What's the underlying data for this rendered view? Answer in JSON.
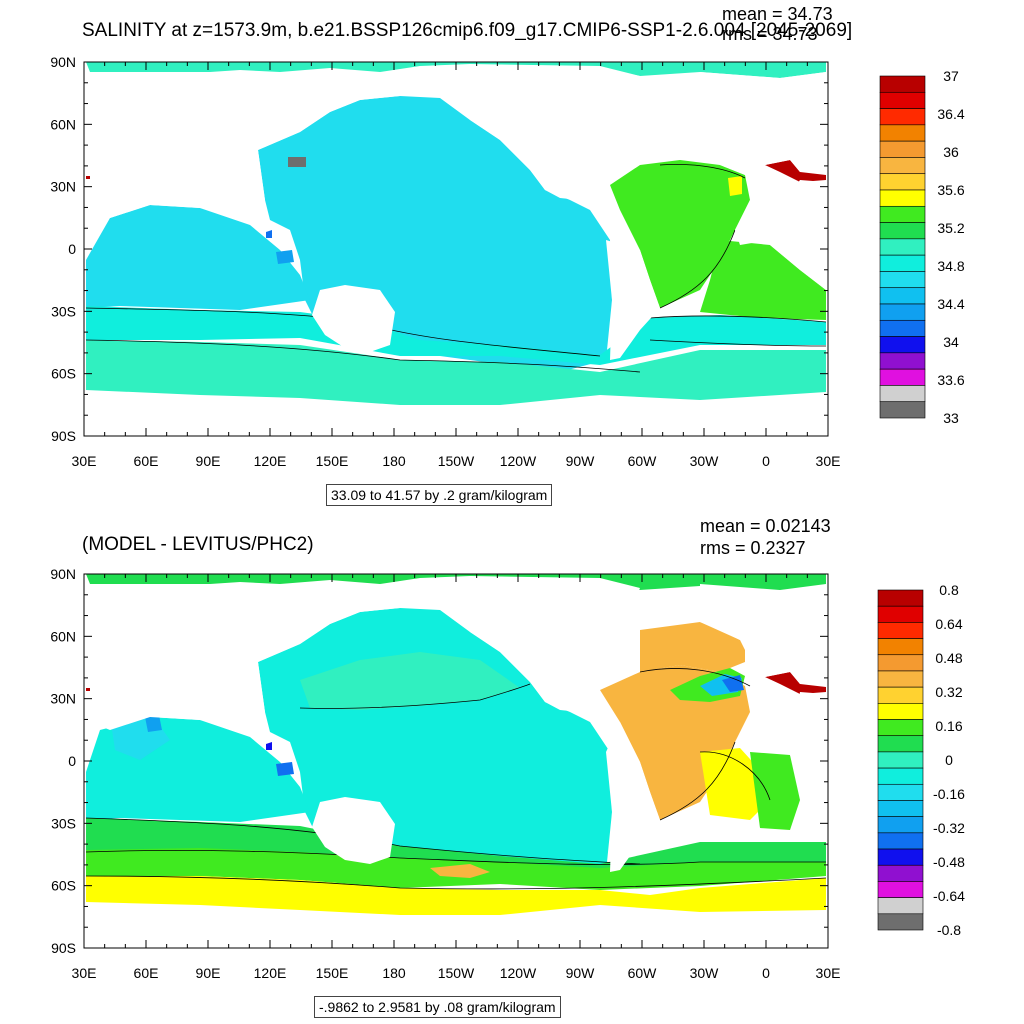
{
  "panel1": {
    "title": "SALINITY at z=1573.9m, b.e21.BSSP126cmip6.f09_g17.CMIP6-SSP1-2.6.004 [2045-2069]",
    "mean_text": "mean = 34.73",
    "rms_text": "rms = 34.73",
    "range_text": "33.09 to 41.57 by .2 gram/kilogram",
    "colorbar_labels": [
      "37",
      "36.4",
      "36",
      "35.6",
      "35.2",
      "34.8",
      "34.4",
      "34",
      "33.6",
      "33"
    ],
    "colorbar_colors": [
      "#b80000",
      "#e00000",
      "#ff2a00",
      "#f28200",
      "#f49a30",
      "#f8b540",
      "#ffd230",
      "#ffff00",
      "#40ea20",
      "#20dd50",
      "#30f0c0",
      "#10eedd",
      "#20ddee",
      "#10c0f0",
      "#10a0f0",
      "#1070f0",
      "#1010ee",
      "#9010d0",
      "#e010e0",
      "#d0d0d0",
      "#6e6e6e"
    ]
  },
  "panel2": {
    "title": "(MODEL - LEVITUS/PHC2)",
    "mean_text": "mean = 0.02143",
    "rms_text": "rms = 0.2327",
    "range_text": "-.9862 to 2.9581 by .08 gram/kilogram",
    "colorbar_labels": [
      "0.8",
      "0.64",
      "0.48",
      "0.32",
      "0.16",
      "0",
      "-0.16",
      "-0.32",
      "-0.48",
      "-0.64",
      "-0.8"
    ],
    "colorbar_colors": [
      "#b80000",
      "#e00000",
      "#ff2a00",
      "#f28200",
      "#f49a30",
      "#f8b540",
      "#ffd230",
      "#ffff00",
      "#40ea20",
      "#20dd50",
      "#30f0c0",
      "#10eedd",
      "#20ddee",
      "#10c0f0",
      "#10a0f0",
      "#1070f0",
      "#1010ee",
      "#9010d0",
      "#e010e0",
      "#d0d0d0",
      "#6e6e6e"
    ]
  },
  "axes": {
    "lat_labels": [
      "90N",
      "60N",
      "30N",
      "0",
      "30S",
      "60S",
      "90S"
    ],
    "lon_labels": [
      "30E",
      "60E",
      "90E",
      "120E",
      "150E",
      "180",
      "150W",
      "120W",
      "90W",
      "60W",
      "30W",
      "0",
      "30E"
    ]
  },
  "chart_data": [
    {
      "type": "heatmap",
      "title": "SALINITY at z=1573.9m, b.e21.BSSP126cmip6.f09_g17.CMIP6-SSP1-2.6.004 [2045-2069]",
      "x_ticks": [
        "30E",
        "60E",
        "90E",
        "120E",
        "150E",
        "180",
        "150W",
        "120W",
        "90W",
        "60W",
        "30W",
        "0",
        "30E"
      ],
      "y_ticks": [
        "90N",
        "60N",
        "30N",
        "0",
        "30S",
        "60S",
        "90S"
      ],
      "mean": 34.73,
      "rms": 34.73,
      "contour_range": [
        33.09,
        41.57
      ],
      "contour_interval": 0.2,
      "units": "gram/kilogram",
      "colorbar_ticks": [
        37,
        36.4,
        36,
        35.6,
        35.2,
        34.8,
        34.4,
        34,
        33.6,
        33
      ]
    },
    {
      "type": "heatmap",
      "title": "(MODEL - LEVITUS/PHC2)",
      "x_ticks": [
        "30E",
        "60E",
        "90E",
        "120E",
        "150E",
        "180",
        "150W",
        "120W",
        "90W",
        "60W",
        "30W",
        "0",
        "30E"
      ],
      "y_ticks": [
        "90N",
        "60N",
        "30N",
        "0",
        "30S",
        "60S",
        "90S"
      ],
      "mean": 0.02143,
      "rms": 0.2327,
      "contour_range": [
        -0.9862,
        2.9581
      ],
      "contour_interval": 0.08,
      "units": "gram/kilogram",
      "colorbar_ticks": [
        0.8,
        0.64,
        0.48,
        0.32,
        0.16,
        0,
        -0.16,
        -0.32,
        -0.48,
        -0.64,
        -0.8
      ]
    }
  ]
}
